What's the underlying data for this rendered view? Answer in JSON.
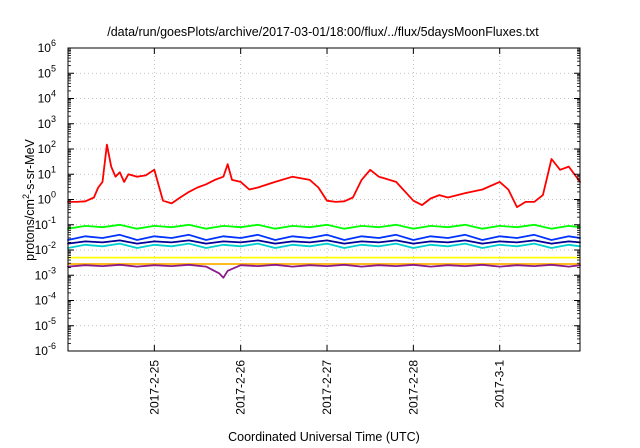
{
  "chart_data": {
    "type": "line",
    "title": "/data/run/goesPlots/archive/2017-03-01/18:00/flux/../flux/5daysMoonFluxes.txt",
    "xlabel": "Coordinated Universal Time (UTC)",
    "ylabel": {
      "base": "protons/cm",
      "sup": "2",
      "rest": "-s-sr-MeV"
    },
    "yscale": "log",
    "ylim": [
      1e-06,
      1000000.0
    ],
    "xlim": [
      0,
      5.93
    ],
    "x_origin_date": "2017-02-24",
    "grid": true,
    "legend": "none",
    "y_ticks": [
      {
        "value": 1e-06,
        "base": "10",
        "exp": "-6"
      },
      {
        "value": 1e-05,
        "base": "10",
        "exp": "-5"
      },
      {
        "value": 0.0001,
        "base": "10",
        "exp": "-4"
      },
      {
        "value": 0.001,
        "base": "10",
        "exp": "-3"
      },
      {
        "value": 0.01,
        "base": "10",
        "exp": "-2"
      },
      {
        "value": 0.1,
        "base": "10",
        "exp": "-1"
      },
      {
        "value": 1,
        "base": "10",
        "exp": "0"
      },
      {
        "value": 10,
        "base": "10",
        "exp": "1"
      },
      {
        "value": 100,
        "base": "10",
        "exp": "2"
      },
      {
        "value": 1000,
        "base": "10",
        "exp": "3"
      },
      {
        "value": 10000,
        "base": "10",
        "exp": "4"
      },
      {
        "value": 100000,
        "base": "10",
        "exp": "5"
      },
      {
        "value": 1000000,
        "base": "10",
        "exp": "6"
      }
    ],
    "x_ticks": [
      {
        "value": 1,
        "label": "2017-2-25"
      },
      {
        "value": 2,
        "label": "2017-2-26"
      },
      {
        "value": 3,
        "label": "2017-2-27"
      },
      {
        "value": 4,
        "label": "2017-2-28"
      },
      {
        "value": 5,
        "label": "2017-3-1"
      }
    ],
    "series": [
      {
        "color": "#ff0000",
        "x": [
          0,
          0.1,
          0.2,
          0.3,
          0.35,
          0.4,
          0.45,
          0.5,
          0.55,
          0.6,
          0.65,
          0.7,
          0.8,
          0.9,
          1.0,
          1.1,
          1.2,
          1.3,
          1.4,
          1.5,
          1.6,
          1.7,
          1.8,
          1.85,
          1.9,
          2.0,
          2.1,
          2.2,
          2.4,
          2.6,
          2.8,
          2.9,
          3.0,
          3.1,
          3.2,
          3.3,
          3.4,
          3.5,
          3.6,
          3.8,
          4.0,
          4.1,
          4.2,
          4.3,
          4.4,
          4.6,
          4.8,
          5.0,
          5.1,
          5.2,
          5.3,
          5.4,
          5.5,
          5.6,
          5.7,
          5.8,
          5.93
        ],
        "values": [
          0.8,
          0.8,
          0.85,
          1.2,
          3,
          5,
          150,
          20,
          8,
          12,
          5,
          10,
          8,
          9,
          15,
          0.9,
          0.7,
          1.2,
          2,
          3,
          4,
          6,
          8,
          25,
          6,
          5,
          2.5,
          3,
          5,
          8,
          6,
          3,
          0.9,
          0.8,
          0.85,
          1.2,
          6,
          15,
          8,
          5,
          0.9,
          0.6,
          1.1,
          1.5,
          1.2,
          1.8,
          2.5,
          5,
          2.5,
          0.5,
          0.8,
          0.8,
          1.5,
          40,
          15,
          20,
          5
        ]
      },
      {
        "color": "#00ff00",
        "x": [
          0,
          0.2,
          0.4,
          0.6,
          0.8,
          1.0,
          1.2,
          1.4,
          1.6,
          1.8,
          2.0,
          2.2,
          2.4,
          2.6,
          2.8,
          3.0,
          3.2,
          3.4,
          3.6,
          3.8,
          4.0,
          4.2,
          4.4,
          4.6,
          4.8,
          5.0,
          5.2,
          5.4,
          5.6,
          5.8,
          5.93
        ],
        "values": [
          0.07,
          0.09,
          0.08,
          0.1,
          0.07,
          0.09,
          0.08,
          0.1,
          0.07,
          0.09,
          0.08,
          0.1,
          0.07,
          0.09,
          0.08,
          0.1,
          0.07,
          0.09,
          0.08,
          0.1,
          0.07,
          0.09,
          0.08,
          0.1,
          0.07,
          0.09,
          0.08,
          0.1,
          0.07,
          0.09,
          0.08
        ]
      },
      {
        "color": "#0033ff",
        "x": [
          0,
          0.2,
          0.4,
          0.6,
          0.8,
          1.0,
          1.2,
          1.4,
          1.6,
          1.8,
          2.0,
          2.2,
          2.4,
          2.6,
          2.8,
          3.0,
          3.2,
          3.4,
          3.6,
          3.8,
          4.0,
          4.2,
          4.4,
          4.6,
          4.8,
          5.0,
          5.2,
          5.4,
          5.6,
          5.8,
          5.93
        ],
        "values": [
          0.025,
          0.035,
          0.03,
          0.04,
          0.025,
          0.035,
          0.03,
          0.04,
          0.025,
          0.035,
          0.03,
          0.04,
          0.025,
          0.035,
          0.03,
          0.04,
          0.025,
          0.035,
          0.03,
          0.04,
          0.025,
          0.035,
          0.03,
          0.04,
          0.025,
          0.035,
          0.03,
          0.04,
          0.025,
          0.035,
          0.03
        ]
      },
      {
        "color": "#00cfcf",
        "x": [
          0,
          0.2,
          0.4,
          0.6,
          0.8,
          1.0,
          1.2,
          1.4,
          1.6,
          1.8,
          2.0,
          2.2,
          2.4,
          2.6,
          2.8,
          3.0,
          3.2,
          3.4,
          3.6,
          3.8,
          4.0,
          4.2,
          4.4,
          4.6,
          4.8,
          5.0,
          5.2,
          5.4,
          5.6,
          5.8,
          5.93
        ],
        "values": [
          0.012,
          0.016,
          0.014,
          0.018,
          0.012,
          0.016,
          0.014,
          0.018,
          0.012,
          0.016,
          0.014,
          0.018,
          0.012,
          0.016,
          0.014,
          0.018,
          0.012,
          0.016,
          0.014,
          0.018,
          0.012,
          0.016,
          0.014,
          0.018,
          0.012,
          0.016,
          0.014,
          0.018,
          0.012,
          0.016,
          0.014
        ]
      },
      {
        "color": "#000099",
        "x": [
          0,
          0.2,
          0.4,
          0.6,
          0.8,
          1.0,
          1.2,
          1.4,
          1.6,
          1.8,
          2.0,
          2.2,
          2.4,
          2.6,
          2.8,
          3.0,
          3.2,
          3.4,
          3.6,
          3.8,
          4.0,
          4.2,
          4.4,
          4.6,
          4.8,
          5.0,
          5.2,
          5.4,
          5.6,
          5.8,
          5.93
        ],
        "values": [
          0.018,
          0.022,
          0.02,
          0.024,
          0.018,
          0.022,
          0.02,
          0.024,
          0.018,
          0.022,
          0.02,
          0.024,
          0.018,
          0.022,
          0.02,
          0.024,
          0.018,
          0.022,
          0.02,
          0.024,
          0.018,
          0.022,
          0.02,
          0.024,
          0.018,
          0.022,
          0.02,
          0.024,
          0.018,
          0.022,
          0.02
        ]
      },
      {
        "color": "#ffff00",
        "x": [
          0,
          0.5,
          1.0,
          1.5,
          2.0,
          2.5,
          3.0,
          3.5,
          4.0,
          4.5,
          5.0,
          5.5,
          5.93
        ],
        "values": [
          0.005,
          0.005,
          0.005,
          0.005,
          0.005,
          0.005,
          0.005,
          0.005,
          0.005,
          0.005,
          0.005,
          0.005,
          0.005
        ]
      },
      {
        "color": "#ffb000",
        "x": [
          0,
          0.5,
          1.0,
          1.5,
          2.0,
          2.5,
          3.0,
          3.5,
          4.0,
          4.5,
          5.0,
          5.5,
          5.93
        ],
        "values": [
          0.0028,
          0.0028,
          0.0028,
          0.0028,
          0.0028,
          0.0028,
          0.0028,
          0.0028,
          0.0028,
          0.0028,
          0.0028,
          0.0028,
          0.0028
        ]
      },
      {
        "color": "#8b1a8b",
        "x": [
          0,
          0.2,
          0.4,
          0.6,
          0.8,
          1.0,
          1.2,
          1.4,
          1.6,
          1.75,
          1.8,
          1.85,
          2.0,
          2.2,
          2.4,
          2.6,
          2.8,
          3.0,
          3.2,
          3.4,
          3.6,
          3.8,
          4.0,
          4.2,
          4.4,
          4.6,
          4.8,
          5.0,
          5.2,
          5.4,
          5.6,
          5.8,
          5.93
        ],
        "values": [
          0.0022,
          0.0025,
          0.0023,
          0.0026,
          0.0022,
          0.0025,
          0.0023,
          0.0026,
          0.0022,
          0.0012,
          0.0008,
          0.0015,
          0.0025,
          0.0023,
          0.0026,
          0.0022,
          0.0025,
          0.0023,
          0.0026,
          0.0022,
          0.0025,
          0.0023,
          0.0026,
          0.0022,
          0.0025,
          0.0023,
          0.0026,
          0.0022,
          0.0025,
          0.0023,
          0.0026,
          0.0022,
          0.0025
        ]
      }
    ]
  }
}
